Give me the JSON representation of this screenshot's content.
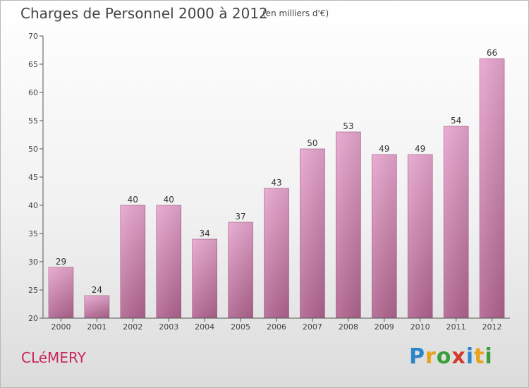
{
  "title": "Charges de Personnel 2000 à 2012",
  "subtitle": "(en milliers d'€)",
  "town": "CLéMERY",
  "logo": {
    "letters": [
      "P",
      "r",
      "o",
      "x",
      "i",
      "t",
      "i"
    ],
    "colors": [
      "#2a86c8",
      "#e8a21c",
      "#3a9e3a",
      "#d23a2a",
      "#2a86c8",
      "#e8a21c",
      "#3a9e3a"
    ]
  },
  "chart_data": {
    "type": "bar",
    "categories": [
      "2000",
      "2001",
      "2002",
      "2003",
      "2004",
      "2005",
      "2006",
      "2007",
      "2008",
      "2009",
      "2010",
      "2011",
      "2012"
    ],
    "values": [
      29,
      24,
      40,
      40,
      34,
      37,
      43,
      50,
      53,
      49,
      49,
      54,
      66
    ],
    "ylim": [
      20,
      70
    ],
    "yticks": [
      20,
      25,
      30,
      35,
      40,
      45,
      50,
      55,
      60,
      65,
      70
    ],
    "bar_color": "#d67fb0",
    "grid": false
  }
}
